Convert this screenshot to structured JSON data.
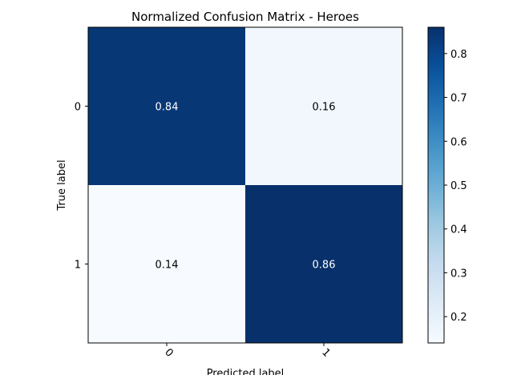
{
  "chart_data": {
    "type": "heatmap",
    "title": "Normalized Confusion Matrix - Heroes",
    "xlabel": "Predicted label",
    "ylabel": "True label",
    "x_categories": [
      "0",
      "1"
    ],
    "y_categories": [
      "0",
      "1"
    ],
    "values": [
      [
        0.84,
        0.16
      ],
      [
        0.14,
        0.86
      ]
    ],
    "cell_labels": [
      [
        "0.84",
        "0.16"
      ],
      [
        "0.14",
        "0.86"
      ]
    ],
    "colormap": "Blues",
    "color_range": [
      0.14,
      0.86
    ],
    "colorbar_ticks": [
      "0.2",
      "0.3",
      "0.4",
      "0.5",
      "0.6",
      "0.7",
      "0.8"
    ],
    "colors": {
      "low": "#f7fbff",
      "high": "#08306b",
      "text_on_dark": "#ffffff",
      "text_on_light": "#000000"
    }
  }
}
